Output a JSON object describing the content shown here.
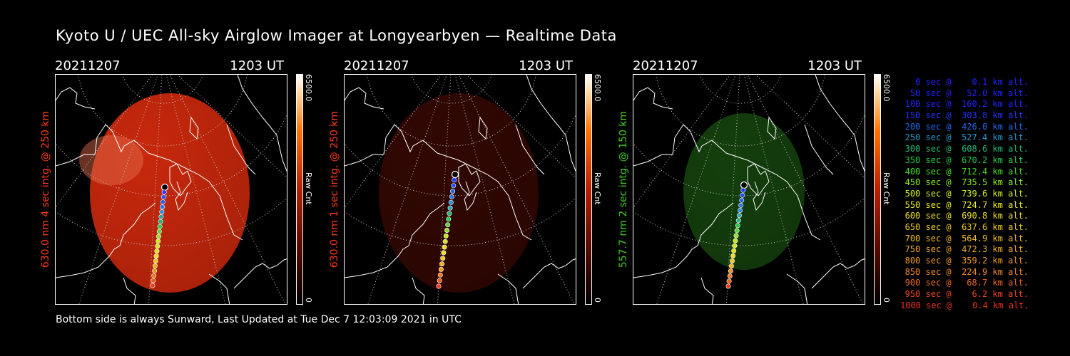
{
  "title": "Kyoto U / UEC All-sky Airglow Imager at Longyearbyen — Realtime Data",
  "footer": "Bottom side is always Sunward, Last Updated at Tue Dec  7 12:03:09 2021 in UTC",
  "panels": [
    {
      "date": "20211207",
      "time": "1203 UT",
      "ylabel": "630.0 nm 4 sec intg. @ 250 km",
      "label_color": "#ff3a18",
      "colorbar_max": "6500.0",
      "colorbar_min": "0",
      "colorbar_label": "Raw Cnt",
      "image_tint": "#c8280c",
      "image_brightness": 1.0
    },
    {
      "date": "20211207",
      "time": "1203 UT",
      "ylabel": "630.0 nm 1 sec intg. @ 250 km",
      "label_color": "#ff3a18",
      "colorbar_max": "6500.0",
      "colorbar_min": "0",
      "colorbar_label": "Raw Cnt",
      "image_tint": "#5a0d05",
      "image_brightness": 0.55
    },
    {
      "date": "20211207",
      "time": "1203 UT",
      "ylabel": "557.7 nm 2 sec intg. @ 150 km",
      "label_color": "#44cc22",
      "colorbar_max": "6500.0",
      "colorbar_min": "0",
      "colorbar_label": "Raw Cnt",
      "image_tint": "#1d5a12",
      "image_brightness": 0.7
    }
  ],
  "legend": [
    {
      "text": "0 sec @    0.1 km alt.",
      "color": "#2222ff"
    },
    {
      "text": "50 sec @   52.0 km alt.",
      "color": "#2222ff"
    },
    {
      "text": "100 sec @  160.2 km alt.",
      "color": "#2222ff"
    },
    {
      "text": "150 sec @  303.8 km alt.",
      "color": "#2233ff"
    },
    {
      "text": "200 sec @  426.0 km alt.",
      "color": "#2266ee"
    },
    {
      "text": "250 sec @  527.4 km alt.",
      "color": "#2299cc"
    },
    {
      "text": "300 sec @  608.6 km alt.",
      "color": "#22bb77"
    },
    {
      "text": "350 sec @  670.2 km alt.",
      "color": "#22cc44"
    },
    {
      "text": "400 sec @  712.4 km alt.",
      "color": "#44dd22"
    },
    {
      "text": "450 sec @  735.5 km alt.",
      "color": "#88ee22"
    },
    {
      "text": "500 sec @  739.6 km alt.",
      "color": "#ccee22"
    },
    {
      "text": "550 sec @  724.7 km alt.",
      "color": "#eeee22"
    },
    {
      "text": "600 sec @  690.8 km alt.",
      "color": "#eedd22"
    },
    {
      "text": "650 sec @  637.6 km alt.",
      "color": "#eecc22"
    },
    {
      "text": "700 sec @  564.9 km alt.",
      "color": "#eebb22"
    },
    {
      "text": "750 sec @  472.3 km alt.",
      "color": "#eeaa22"
    },
    {
      "text": "800 sec @  359.2 km alt.",
      "color": "#ee9922"
    },
    {
      "text": "850 sec @  224.9 km alt.",
      "color": "#ee8822"
    },
    {
      "text": "900 sec @   68.7 km alt.",
      "color": "#ee6622"
    },
    {
      "text": "950 sec @    6.2 km alt.",
      "color": "#ee4422"
    },
    {
      "text": "1000 sec @    0.4 km alt.",
      "color": "#ee3322"
    }
  ]
}
